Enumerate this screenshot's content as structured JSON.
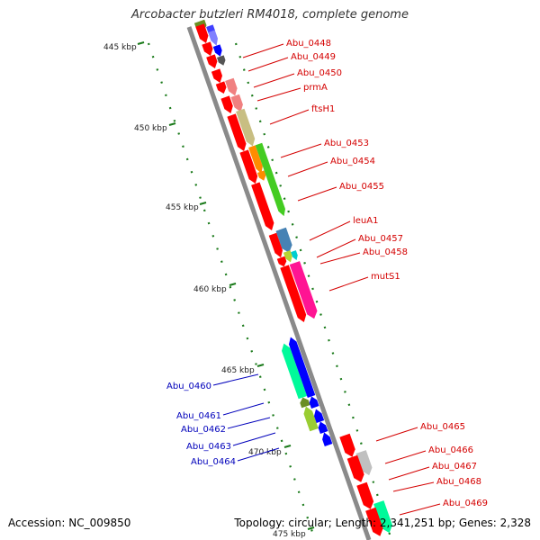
{
  "title": "Arcobacter butzleri RM4018, complete genome",
  "footer": {
    "accession": "Accession: NC_009850",
    "stats": "Topology: circular; Length: 2,341,251 bp; Genes: 2,328"
  },
  "colors": {
    "backbone": "#8a8a8a",
    "tick_marks": "#1a7a1a",
    "forward_label": "#d40000",
    "reverse_label": "#0000bb"
  },
  "axis_ticks": [
    {
      "label": "445 kbp"
    },
    {
      "label": "450 kbp"
    },
    {
      "label": "455 kbp"
    },
    {
      "label": "460 kbp"
    },
    {
      "label": "465 kbp"
    },
    {
      "label": "470 kbp"
    },
    {
      "label": "475 kbp"
    }
  ],
  "forward_genes": [
    {
      "label": "Abu_0448"
    },
    {
      "label": "Abu_0449"
    },
    {
      "label": "Abu_0450"
    },
    {
      "label": "prmA"
    },
    {
      "label": "ftsH1"
    },
    {
      "label": "Abu_0453"
    },
    {
      "label": "Abu_0454"
    },
    {
      "label": "Abu_0455"
    },
    {
      "label": "leuA1"
    },
    {
      "label": "Abu_0457"
    },
    {
      "label": "Abu_0458"
    },
    {
      "label": "mutS1"
    },
    {
      "label": "Abu_0465"
    },
    {
      "label": "Abu_0466"
    },
    {
      "label": "Abu_0467"
    },
    {
      "label": "Abu_0468"
    },
    {
      "label": "Abu_0469"
    }
  ],
  "reverse_genes": [
    {
      "label": "Abu_0460"
    },
    {
      "label": "Abu_0461"
    },
    {
      "label": "Abu_0462"
    },
    {
      "label": "Abu_0463"
    },
    {
      "label": "Abu_0464"
    }
  ]
}
